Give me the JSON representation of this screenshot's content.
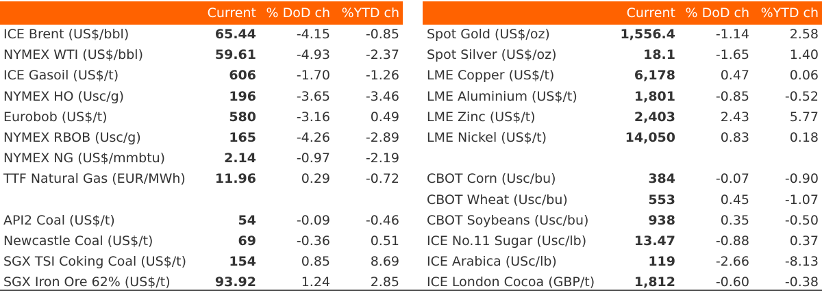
{
  "columns": [
    "Current",
    "% DoD ch",
    "%YTD ch"
  ],
  "accent_color": "#ff6200",
  "left_rows": [
    {
      "name": "ICE Brent (US$/bbl)",
      "current": "65.44",
      "dod": "-4.15",
      "ytd": "-0.85"
    },
    {
      "name": "NYMEX WTI (US$/bbl)",
      "current": "59.61",
      "dod": "-4.93",
      "ytd": "-2.37"
    },
    {
      "name": "ICE Gasoil (US$/t)",
      "current": "606",
      "dod": "-1.70",
      "ytd": "-1.26"
    },
    {
      "name": "NYMEX HO (Usc/g)",
      "current": "196",
      "dod": "-3.65",
      "ytd": "-3.46"
    },
    {
      "name": "Eurobob (US$/t)",
      "current": "580",
      "dod": "-3.16",
      "ytd": "0.49"
    },
    {
      "name": "NYMEX RBOB (Usc/g)",
      "current": "165",
      "dod": "-4.26",
      "ytd": "-2.89"
    },
    {
      "name": "NYMEX NG (US$/mmbtu)",
      "current": "2.14",
      "dod": "-0.97",
      "ytd": "-2.19"
    },
    {
      "name": "TTF Natural Gas (EUR/MWh)",
      "current": "11.96",
      "dod": "0.29",
      "ytd": "-0.72"
    },
    {
      "name": "",
      "current": "",
      "dod": "",
      "ytd": ""
    },
    {
      "name": "API2 Coal (US$/t)",
      "current": "54",
      "dod": "-0.09",
      "ytd": "-0.46"
    },
    {
      "name": "Newcastle Coal (US$/t)",
      "current": "69",
      "dod": "-0.36",
      "ytd": "0.51"
    },
    {
      "name": "SGX TSI Coking Coal (US$/t)",
      "current": "154",
      "dod": "0.85",
      "ytd": "8.69"
    },
    {
      "name": "SGX Iron Ore 62% (US$/t)",
      "current": "93.92",
      "dod": "1.24",
      "ytd": "2.85"
    }
  ],
  "right_rows": [
    {
      "name": "Spot Gold (US$/oz)",
      "current": "1,556.4",
      "dod": "-1.14",
      "ytd": "2.58"
    },
    {
      "name": "Spot Silver (US$/oz)",
      "current": "18.1",
      "dod": "-1.65",
      "ytd": "1.40"
    },
    {
      "name": "LME Copper (US$/t)",
      "current": "6,178",
      "dod": "0.47",
      "ytd": "0.06"
    },
    {
      "name": "LME Aluminium (US$/t)",
      "current": "1,801",
      "dod": "-0.85",
      "ytd": "-0.52"
    },
    {
      "name": "LME Zinc (US$/t)",
      "current": "2,403",
      "dod": "2.43",
      "ytd": "5.77"
    },
    {
      "name": "LME Nickel (US$/t)",
      "current": "14,050",
      "dod": "0.83",
      "ytd": "0.18"
    },
    {
      "name": "",
      "current": "",
      "dod": "",
      "ytd": ""
    },
    {
      "name": "CBOT Corn (Usc/bu)",
      "current": "384",
      "dod": "-0.07",
      "ytd": "-0.90"
    },
    {
      "name": "CBOT Wheat (Usc/bu)",
      "current": "553",
      "dod": "0.45",
      "ytd": "-1.07"
    },
    {
      "name": "CBOT Soybeans (Usc/bu)",
      "current": "938",
      "dod": "0.35",
      "ytd": "-0.50"
    },
    {
      "name": "ICE No.11 Sugar (Usc/lb)",
      "current": "13.47",
      "dod": "-0.88",
      "ytd": "0.37"
    },
    {
      "name": "ICE Arabica (USc/lb)",
      "current": "119",
      "dod": "-2.66",
      "ytd": "-8.13"
    },
    {
      "name": "ICE London Cocoa (GBP/t)",
      "current": "1,812",
      "dod": "-0.60",
      "ytd": "-0.38"
    }
  ]
}
